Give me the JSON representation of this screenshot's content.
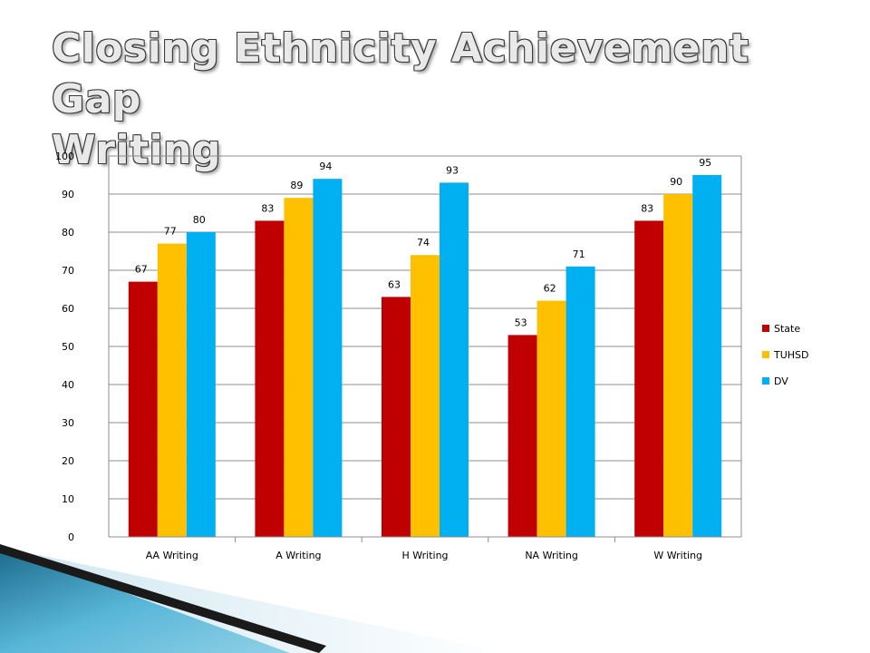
{
  "slide": {
    "title_line1": "Closing Ethnicity Achievement Gap",
    "title_line2": "Writing"
  },
  "chart_data": {
    "type": "bar",
    "title": "",
    "xlabel": "",
    "ylabel": "",
    "categories": [
      "AA Writing",
      "A Writing",
      "H Writing",
      "NA Writing",
      "W Writing"
    ],
    "series": [
      {
        "name": "State",
        "color": "#c00000",
        "values": [
          67,
          83,
          63,
          53,
          83
        ]
      },
      {
        "name": "TUHSD",
        "color": "#ffc000",
        "values": [
          77,
          89,
          74,
          62,
          90
        ]
      },
      {
        "name": "DV",
        "color": "#00b0f0",
        "values": [
          80,
          94,
          93,
          71,
          95
        ]
      }
    ],
    "ylim": [
      0,
      100
    ],
    "yticks": [
      0,
      10,
      20,
      30,
      40,
      50,
      60,
      70,
      80,
      90,
      100
    ],
    "grid": true,
    "legend": "right",
    "data_labels": true
  },
  "colors": {
    "decor_dark": "#1f3f55",
    "decor_light": "#5bb8d9"
  }
}
